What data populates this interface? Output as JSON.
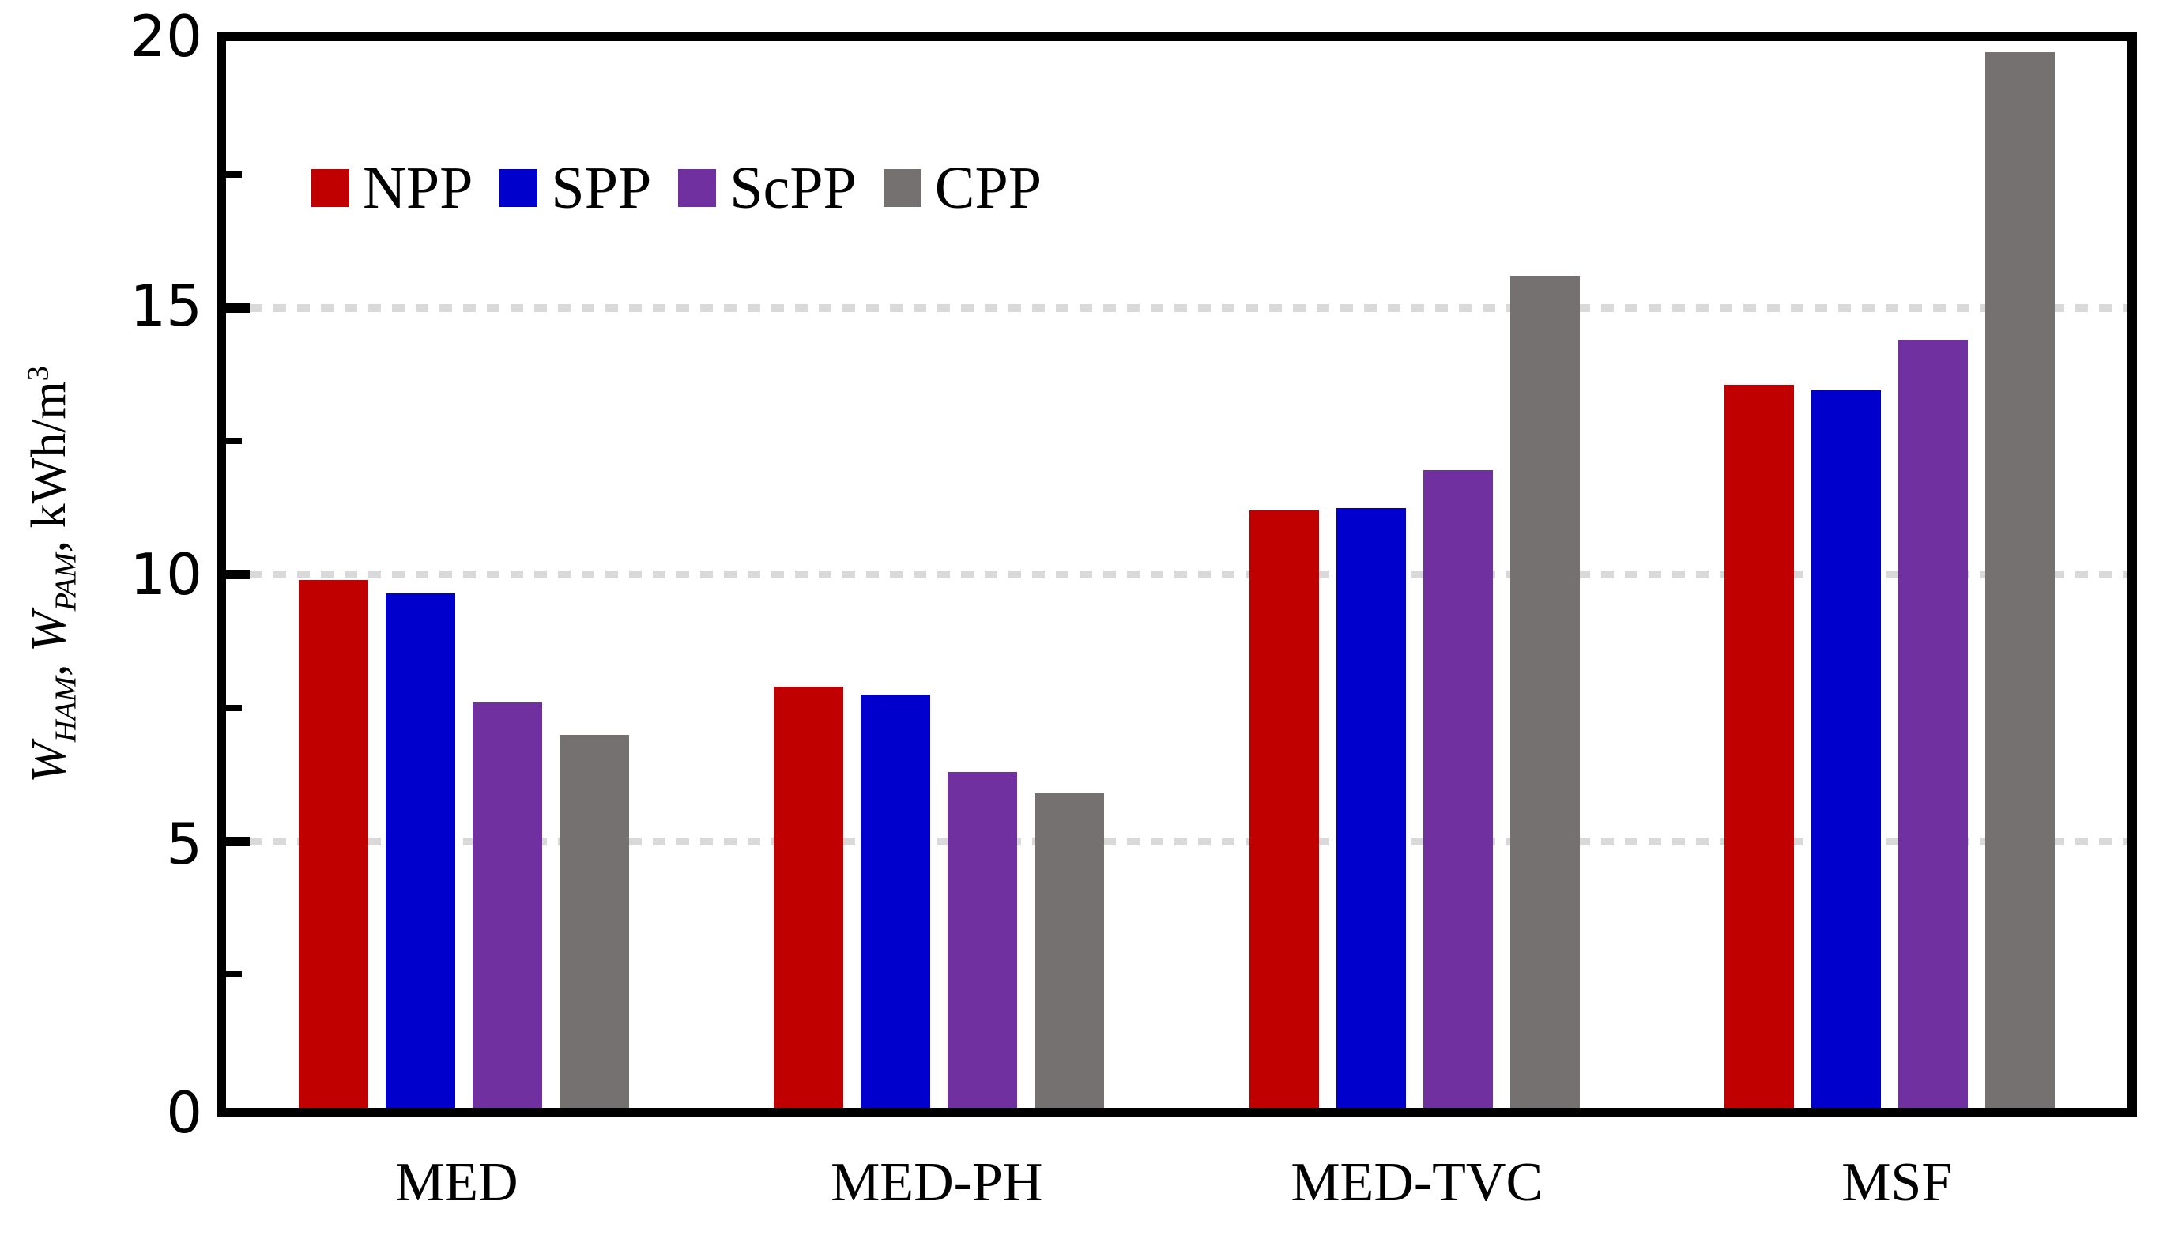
{
  "figure": {
    "ylabel_parts": [
      {
        "text": "W",
        "style": "w"
      },
      {
        "text": "HAM",
        "style": "sub"
      },
      {
        "text": ", ",
        "style": "plain"
      },
      {
        "text": "W",
        "style": "w"
      },
      {
        "text": "PAM",
        "style": "sub"
      },
      {
        "text": ", kWh/m",
        "style": "plain"
      },
      {
        "text": "3",
        "style": "sup"
      }
    ]
  },
  "chart_data": {
    "type": "bar",
    "title": "",
    "xlabel": "",
    "ylabel": "W_HAM, W_PAM, kWh/m^3",
    "categories": [
      "MED",
      "MED-PH",
      "MED-TVC",
      "MSF"
    ],
    "series": [
      {
        "name": "NPP",
        "color": "#C00000",
        "values": [
          9.9,
          7.9,
          11.2,
          13.55
        ]
      },
      {
        "name": "SPP",
        "color": "#0000CC",
        "values": [
          9.65,
          7.75,
          11.25,
          13.45
        ]
      },
      {
        "name": "ScPP",
        "color": "#7030A0",
        "values": [
          7.6,
          6.3,
          11.95,
          14.4
        ]
      },
      {
        "name": "CPP",
        "color": "#767171",
        "values": [
          7.0,
          5.9,
          15.6,
          19.8
        ]
      }
    ],
    "ylim": [
      0,
      20
    ],
    "yticks_major": [
      0,
      5,
      10,
      15,
      20
    ],
    "ytick_labels": [
      "0",
      "5",
      "10",
      "15",
      "20"
    ],
    "yticks_minor": [
      2.5,
      7.5,
      12.5,
      17.5
    ],
    "gridlines_at": [
      5,
      10,
      15
    ],
    "grid_style": "dotted-horizontal",
    "grid_color": "#D9D9D9",
    "axis_color": "#000000",
    "legend_entries": [
      "NPP",
      "SPP",
      "ScPP",
      "CPP"
    ],
    "legend_position": "inside-top-left"
  }
}
